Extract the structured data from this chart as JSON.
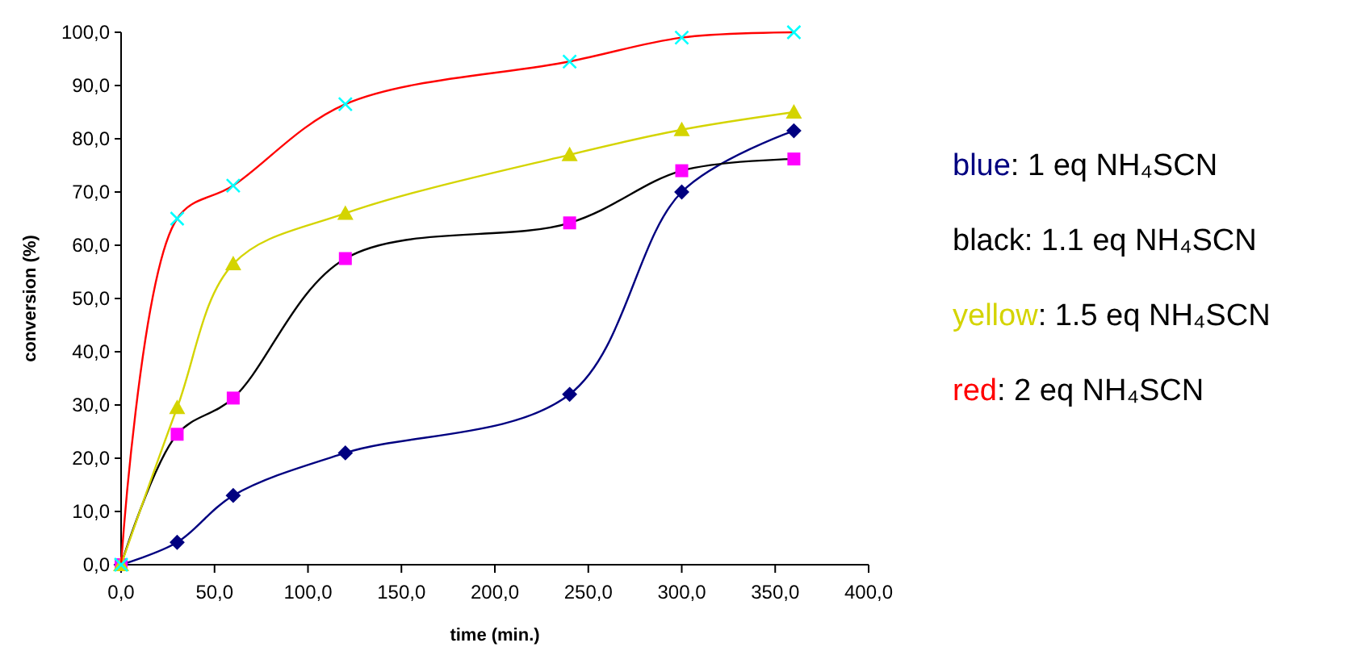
{
  "chart_data": {
    "type": "line",
    "xlabel": "time (min.)",
    "ylabel": "conversion (%)",
    "x": [
      0,
      30,
      60,
      120,
      240,
      300,
      360
    ],
    "series": [
      {
        "name": "blue: 1 eq NH₄SCN",
        "color": "#000080",
        "colors": [
          "#000080",
          "#000080",
          "#000080",
          "#000080",
          "#000080",
          "#000080",
          "#000080"
        ],
        "marker": "diamond",
        "values": [
          0,
          4.2,
          13,
          21,
          32,
          70,
          81.5
        ]
      },
      {
        "name": "black: 1.1 eq NH₄SCN",
        "color": "#000000",
        "colors": [
          "#ff00ff",
          "#ff00ff",
          "#ff00ff",
          "#ff00ff",
          "#ff00ff",
          "#ff00ff",
          "#ff00ff"
        ],
        "marker": "square",
        "values": [
          0,
          24.5,
          31.3,
          57.5,
          64.2,
          74,
          76.2
        ]
      },
      {
        "name": "yellow: 1.5 eq NH₄SCN",
        "color": "#d4d400",
        "colors": [
          "#d4d400",
          "#d4d400",
          "#d4d400",
          "#d4d400",
          "#d4d400",
          "#d4d400",
          "#d4d400"
        ],
        "marker": "triangle",
        "values": [
          0,
          29.5,
          56.5,
          66,
          77,
          81.7,
          85
        ]
      },
      {
        "name": "red: 2 eq NH₄SCN",
        "color": "#ff0000",
        "colors": [
          "#00ffff",
          "#00ffff",
          "#00ffff",
          "#00ffff",
          "#00ffff",
          "#00ffff",
          "#00ffff"
        ],
        "marker": "cross",
        "values": [
          0,
          65,
          71.2,
          86.5,
          94.5,
          99,
          100
        ]
      }
    ],
    "xlim": [
      0,
      400
    ],
    "xticks": [
      {
        "value": 0,
        "label": "0,0"
      },
      {
        "value": 50,
        "label": "50,0"
      },
      {
        "value": 100,
        "label": "100,0"
      },
      {
        "value": 150,
        "label": "150,0"
      },
      {
        "value": 200,
        "label": "200,0"
      },
      {
        "value": 250,
        "label": "250,0"
      },
      {
        "value": 300,
        "label": "300,0"
      },
      {
        "value": 350,
        "label": "350,0"
      },
      {
        "value": 400,
        "label": "400,0"
      }
    ],
    "ylim": [
      0,
      100
    ],
    "yticks": [
      {
        "value": 0,
        "label": "0,0"
      },
      {
        "value": 10,
        "label": "10,0"
      },
      {
        "value": 20,
        "label": "20,0"
      },
      {
        "value": 30,
        "label": "30,0"
      },
      {
        "value": 40,
        "label": "40,0"
      },
      {
        "value": 50,
        "label": "50,0"
      },
      {
        "value": 60,
        "label": "60,0"
      },
      {
        "value": 70,
        "label": "70,0"
      },
      {
        "value": 80,
        "label": "80,0"
      },
      {
        "value": 90,
        "label": "90,0"
      },
      {
        "value": 100,
        "label": "100,0"
      }
    ],
    "grid": false,
    "legend": "right",
    "line_style": "solid"
  }
}
